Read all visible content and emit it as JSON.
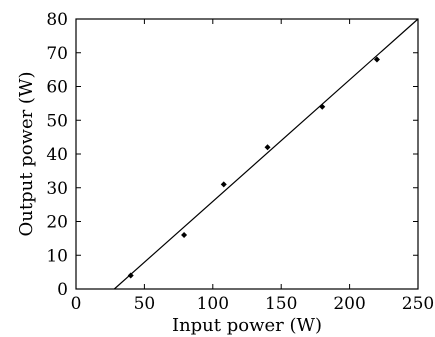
{
  "chart_data": {
    "type": "scatter",
    "xlabel": "Input power (W)",
    "ylabel": "Output power (W)",
    "xlim": [
      0,
      250
    ],
    "ylim": [
      0,
      80
    ],
    "xticks": [
      0,
      50,
      100,
      150,
      200,
      250
    ],
    "yticks": [
      0,
      10,
      20,
      30,
      40,
      50,
      60,
      70,
      80
    ],
    "grid": false,
    "series": [
      {
        "type": "scatter",
        "x": [
          40,
          79,
          108,
          140,
          180,
          220
        ],
        "y": [
          4,
          16,
          31,
          42,
          54,
          68
        ]
      },
      {
        "type": "line",
        "x": [
          28,
          250
        ],
        "y": [
          0,
          80
        ]
      }
    ]
  }
}
